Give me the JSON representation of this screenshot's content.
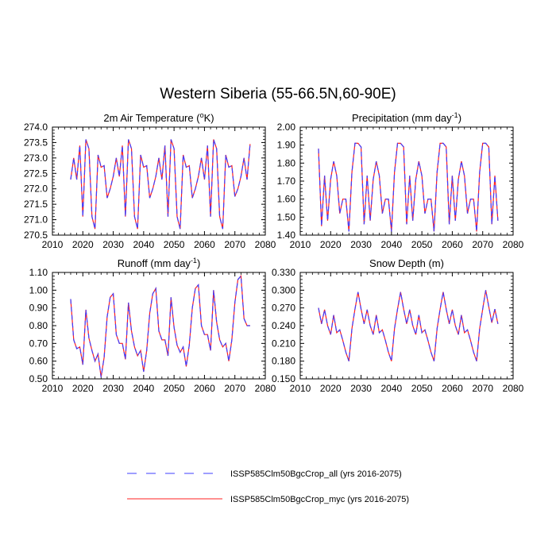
{
  "figure": {
    "title": "Western Siberia (55-66.5N,60-90E)"
  },
  "colors": {
    "series_all": "#3f3fff",
    "series_myc": "#ff2020",
    "axis": "#000000"
  },
  "legend": {
    "placement": "bottom-center",
    "items": [
      {
        "label": "ISSP585Clm50BgcCrop_all (yrs 2016-2075)",
        "style": "dashed",
        "color": "#3f3fff"
      },
      {
        "label": "ISSP585Clm50BgcCrop_myc (yrs 2016-2075)",
        "style": "solid",
        "color": "#ff2020"
      }
    ]
  },
  "chart_data": [
    {
      "type": "line",
      "title_main": "2m Air Temperature (",
      "title_sup": "o",
      "title_tail": "K)",
      "xlim": [
        2010,
        2080
      ],
      "xticks": [
        "2010",
        "2020",
        "2030",
        "2040",
        "2050",
        "2060",
        "2070",
        "2080"
      ],
      "ylim": [
        270.5,
        274.0
      ],
      "yticks": [
        "270.5",
        "271.0",
        "271.5",
        "272.0",
        "272.5",
        "273.0",
        "273.5",
        "274.0"
      ],
      "x": [
        2016,
        2017,
        2018,
        2019,
        2020,
        2021,
        2022,
        2023,
        2024,
        2025,
        2026,
        2027,
        2028,
        2029,
        2030,
        2031,
        2032,
        2033,
        2034,
        2035,
        2036,
        2037,
        2038,
        2039,
        2040,
        2041,
        2042,
        2043,
        2044,
        2045,
        2046,
        2047,
        2048,
        2049,
        2050,
        2051,
        2052,
        2053,
        2054,
        2055,
        2056,
        2057,
        2058,
        2059,
        2060,
        2061,
        2062,
        2063,
        2064,
        2065,
        2066,
        2067,
        2068,
        2069,
        2070,
        2071,
        2072,
        2073,
        2074,
        2075
      ],
      "series": [
        {
          "values": [
            272.3,
            273.0,
            272.3,
            273.4,
            271.1,
            273.6,
            273.3,
            271.1,
            270.7,
            273.1,
            272.7,
            272.75,
            271.7,
            272.0,
            272.4,
            273.0,
            272.4,
            273.4,
            271.1,
            273.6,
            273.3,
            271.1,
            270.7,
            273.1,
            272.7,
            272.75,
            271.7,
            272.0,
            272.4,
            273.0,
            272.3,
            273.4,
            271.1,
            273.6,
            273.3,
            271.1,
            270.7,
            273.1,
            272.7,
            272.75,
            271.7,
            272.0,
            272.4,
            273.0,
            272.3,
            273.4,
            271.1,
            273.6,
            273.3,
            271.1,
            270.7,
            273.1,
            272.7,
            272.75,
            271.75,
            272.0,
            272.4,
            273.0,
            272.3,
            273.45
          ]
        }
      ]
    },
    {
      "type": "line",
      "title_main": "Precipitation (mm day",
      "title_sup": "-1",
      "title_tail": ")",
      "xlim": [
        2010,
        2080
      ],
      "xticks": [
        "2010",
        "2020",
        "2030",
        "2040",
        "2050",
        "2060",
        "2070",
        "2080"
      ],
      "ylim": [
        1.4,
        2.0
      ],
      "yticks": [
        "1.40",
        "1.50",
        "1.60",
        "1.70",
        "1.80",
        "1.90",
        "2.00"
      ],
      "x": [
        2016,
        2017,
        2018,
        2019,
        2020,
        2021,
        2022,
        2023,
        2024,
        2025,
        2026,
        2027,
        2028,
        2029,
        2030,
        2031,
        2032,
        2033,
        2034,
        2035,
        2036,
        2037,
        2038,
        2039,
        2040,
        2041,
        2042,
        2043,
        2044,
        2045,
        2046,
        2047,
        2048,
        2049,
        2050,
        2051,
        2052,
        2053,
        2054,
        2055,
        2056,
        2057,
        2058,
        2059,
        2060,
        2061,
        2062,
        2063,
        2064,
        2065,
        2066,
        2067,
        2068,
        2069,
        2070,
        2071,
        2072,
        2073,
        2074,
        2075
      ],
      "series": [
        {
          "values": [
            1.88,
            1.45,
            1.73,
            1.48,
            1.71,
            1.81,
            1.73,
            1.52,
            1.6,
            1.6,
            1.42,
            1.75,
            1.91,
            1.91,
            1.89,
            1.46,
            1.73,
            1.48,
            1.71,
            1.81,
            1.73,
            1.52,
            1.6,
            1.6,
            1.42,
            1.75,
            1.91,
            1.91,
            1.89,
            1.46,
            1.73,
            1.48,
            1.71,
            1.81,
            1.73,
            1.52,
            1.6,
            1.6,
            1.42,
            1.75,
            1.91,
            1.91,
            1.89,
            1.46,
            1.73,
            1.48,
            1.71,
            1.81,
            1.73,
            1.52,
            1.6,
            1.6,
            1.42,
            1.75,
            1.91,
            1.91,
            1.89,
            1.46,
            1.73,
            1.48
          ]
        }
      ]
    },
    {
      "type": "line",
      "title_main": "Runoff (mm day",
      "title_sup": "-1",
      "title_tail": ")",
      "xlim": [
        2010,
        2080
      ],
      "xticks": [
        "2010",
        "2020",
        "2030",
        "2040",
        "2050",
        "2060",
        "2070",
        "2080"
      ],
      "ylim": [
        0.5,
        1.1
      ],
      "yticks": [
        "0.50",
        "0.60",
        "0.70",
        "0.80",
        "0.90",
        "1.00",
        "1.10"
      ],
      "x": [
        2016,
        2017,
        2018,
        2019,
        2020,
        2021,
        2022,
        2023,
        2024,
        2025,
        2026,
        2027,
        2028,
        2029,
        2030,
        2031,
        2032,
        2033,
        2034,
        2035,
        2036,
        2037,
        2038,
        2039,
        2040,
        2041,
        2042,
        2043,
        2044,
        2045,
        2046,
        2047,
        2048,
        2049,
        2050,
        2051,
        2052,
        2053,
        2054,
        2055,
        2056,
        2057,
        2058,
        2059,
        2060,
        2061,
        2062,
        2063,
        2064,
        2065,
        2066,
        2067,
        2068,
        2069,
        2070,
        2071,
        2072,
        2073,
        2074,
        2075
      ],
      "series": [
        {
          "values": [
            0.95,
            0.72,
            0.67,
            0.68,
            0.58,
            0.89,
            0.73,
            0.66,
            0.6,
            0.64,
            0.51,
            0.62,
            0.85,
            0.96,
            0.98,
            0.75,
            0.7,
            0.7,
            0.61,
            0.93,
            0.77,
            0.68,
            0.63,
            0.66,
            0.54,
            0.66,
            0.87,
            0.98,
            1.01,
            0.77,
            0.72,
            0.72,
            0.63,
            0.96,
            0.79,
            0.69,
            0.65,
            0.68,
            0.57,
            0.69,
            0.9,
            1.01,
            1.03,
            0.8,
            0.75,
            0.75,
            0.66,
            1.0,
            0.82,
            0.72,
            0.68,
            0.7,
            0.6,
            0.72,
            0.93,
            1.06,
            1.08,
            0.84,
            0.8,
            0.8
          ]
        }
      ]
    },
    {
      "type": "line",
      "title_main": "Snow Depth (m)",
      "title_sup": "",
      "title_tail": "",
      "xlim": [
        2010,
        2080
      ],
      "xticks": [
        "2010",
        "2020",
        "2030",
        "2040",
        "2050",
        "2060",
        "2070",
        "2080"
      ],
      "ylim": [
        0.15,
        0.33
      ],
      "yticks": [
        "0.150",
        "0.180",
        "0.210",
        "0.240",
        "0.270",
        "0.300",
        "0.330"
      ],
      "x": [
        2016,
        2017,
        2018,
        2019,
        2020,
        2021,
        2022,
        2023,
        2024,
        2025,
        2026,
        2027,
        2028,
        2029,
        2030,
        2031,
        2032,
        2033,
        2034,
        2035,
        2036,
        2037,
        2038,
        2039,
        2040,
        2041,
        2042,
        2043,
        2044,
        2045,
        2046,
        2047,
        2048,
        2049,
        2050,
        2051,
        2052,
        2053,
        2054,
        2055,
        2056,
        2057,
        2058,
        2059,
        2060,
        2061,
        2062,
        2063,
        2064,
        2065,
        2066,
        2067,
        2068,
        2069,
        2070,
        2071,
        2072,
        2073,
        2074,
        2075
      ],
      "series": [
        {
          "values": [
            0.27,
            0.243,
            0.267,
            0.24,
            0.225,
            0.258,
            0.228,
            0.233,
            0.215,
            0.195,
            0.18,
            0.235,
            0.268,
            0.297,
            0.268,
            0.243,
            0.267,
            0.24,
            0.225,
            0.258,
            0.228,
            0.233,
            0.215,
            0.195,
            0.18,
            0.235,
            0.268,
            0.297,
            0.268,
            0.243,
            0.267,
            0.24,
            0.225,
            0.258,
            0.228,
            0.233,
            0.215,
            0.195,
            0.18,
            0.235,
            0.268,
            0.297,
            0.268,
            0.243,
            0.267,
            0.24,
            0.225,
            0.258,
            0.228,
            0.233,
            0.215,
            0.195,
            0.18,
            0.235,
            0.268,
            0.3,
            0.272,
            0.245,
            0.268,
            0.243
          ]
        }
      ]
    }
  ]
}
